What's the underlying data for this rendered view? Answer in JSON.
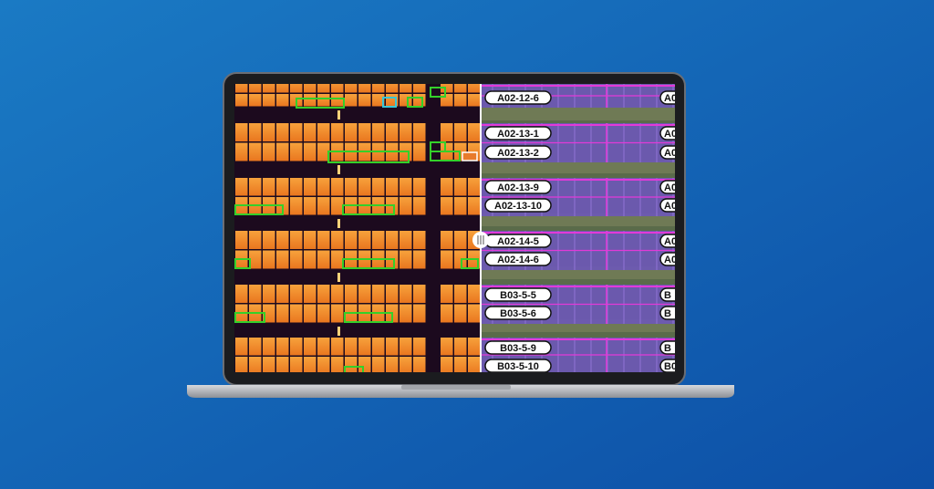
{
  "labels": [
    "A02-12-6",
    "A02-13-1",
    "A02-13-2",
    "A02-13-9",
    "A02-13-10",
    "A02-14-5",
    "A02-14-6",
    "B03-5-5",
    "B03-5-6",
    "B03-5-9",
    "B03-5-10"
  ],
  "edge_labels": [
    "A0",
    "A0",
    "A0",
    "A0",
    "A0",
    "A0",
    "A0",
    "B",
    "B",
    "B",
    "B0"
  ]
}
